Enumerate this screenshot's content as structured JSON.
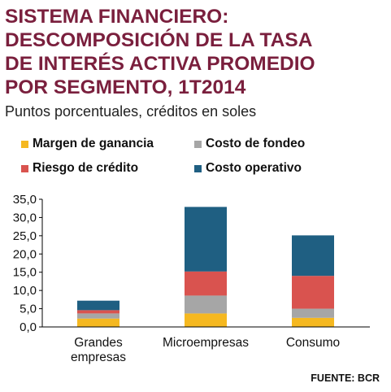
{
  "title_lines": [
    "SISTEMA FINANCIERO:",
    "DESCOMPOSICIÓN DE LA TASA",
    "DE INTERÉS ACTIVA PROMEDIO",
    "POR SEGMENTO, 1T2014"
  ],
  "subtitle": "Puntos porcentuales, créditos en soles",
  "source": "FUENTE: BCR",
  "chart_data": {
    "type": "bar",
    "stacked": true,
    "categories": [
      [
        "Grandes",
        "empresas"
      ],
      [
        "Microempresas"
      ],
      [
        "Consumo"
      ]
    ],
    "series": [
      {
        "name": "Margen de ganancia",
        "color": "#f5b820",
        "values": [
          2.3,
          3.7,
          2.5
        ]
      },
      {
        "name": "Costo de fondeo",
        "color": "#a6a6a6",
        "values": [
          1.4,
          4.9,
          2.5
        ]
      },
      {
        "name": "Riesgo de crédito",
        "color": "#d9534f",
        "values": [
          0.9,
          6.6,
          9.0
        ]
      },
      {
        "name": "Costo operativo",
        "color": "#1f5f82",
        "values": [
          2.6,
          17.7,
          11.1
        ]
      }
    ],
    "ylim": [
      0,
      35
    ],
    "yticks": [
      "0,0",
      "5,0",
      "10,0",
      "15,0",
      "20,0",
      "25,0",
      "30,0",
      "35,0"
    ],
    "ytick_values": [
      0,
      5,
      10,
      15,
      20,
      25,
      30,
      35
    ],
    "grid": false,
    "legend_position": "top"
  }
}
